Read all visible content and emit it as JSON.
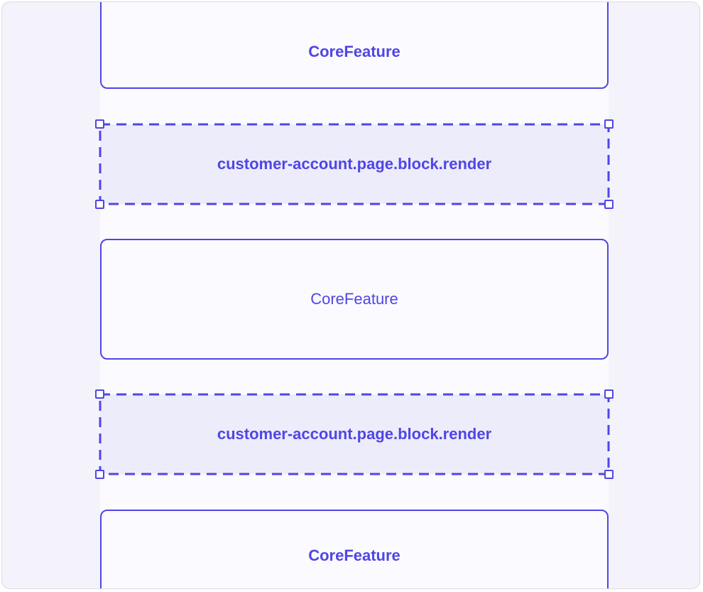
{
  "blocks": [
    {
      "type": "component",
      "label": "CoreFeature",
      "emphasis": "bold"
    },
    {
      "type": "extension-target",
      "label": "customer-account.page.block.render"
    },
    {
      "type": "component",
      "label": "CoreFeature",
      "emphasis": "regular"
    },
    {
      "type": "extension-target",
      "label": "customer-account.page.block.render"
    },
    {
      "type": "component",
      "label": "CoreFeature",
      "emphasis": "bold"
    }
  ],
  "colors": {
    "accent": "#4f46e5",
    "frame_background": "#f4f3fb",
    "target_fill": "#edecfb",
    "component_fill": "#fbfaff"
  }
}
